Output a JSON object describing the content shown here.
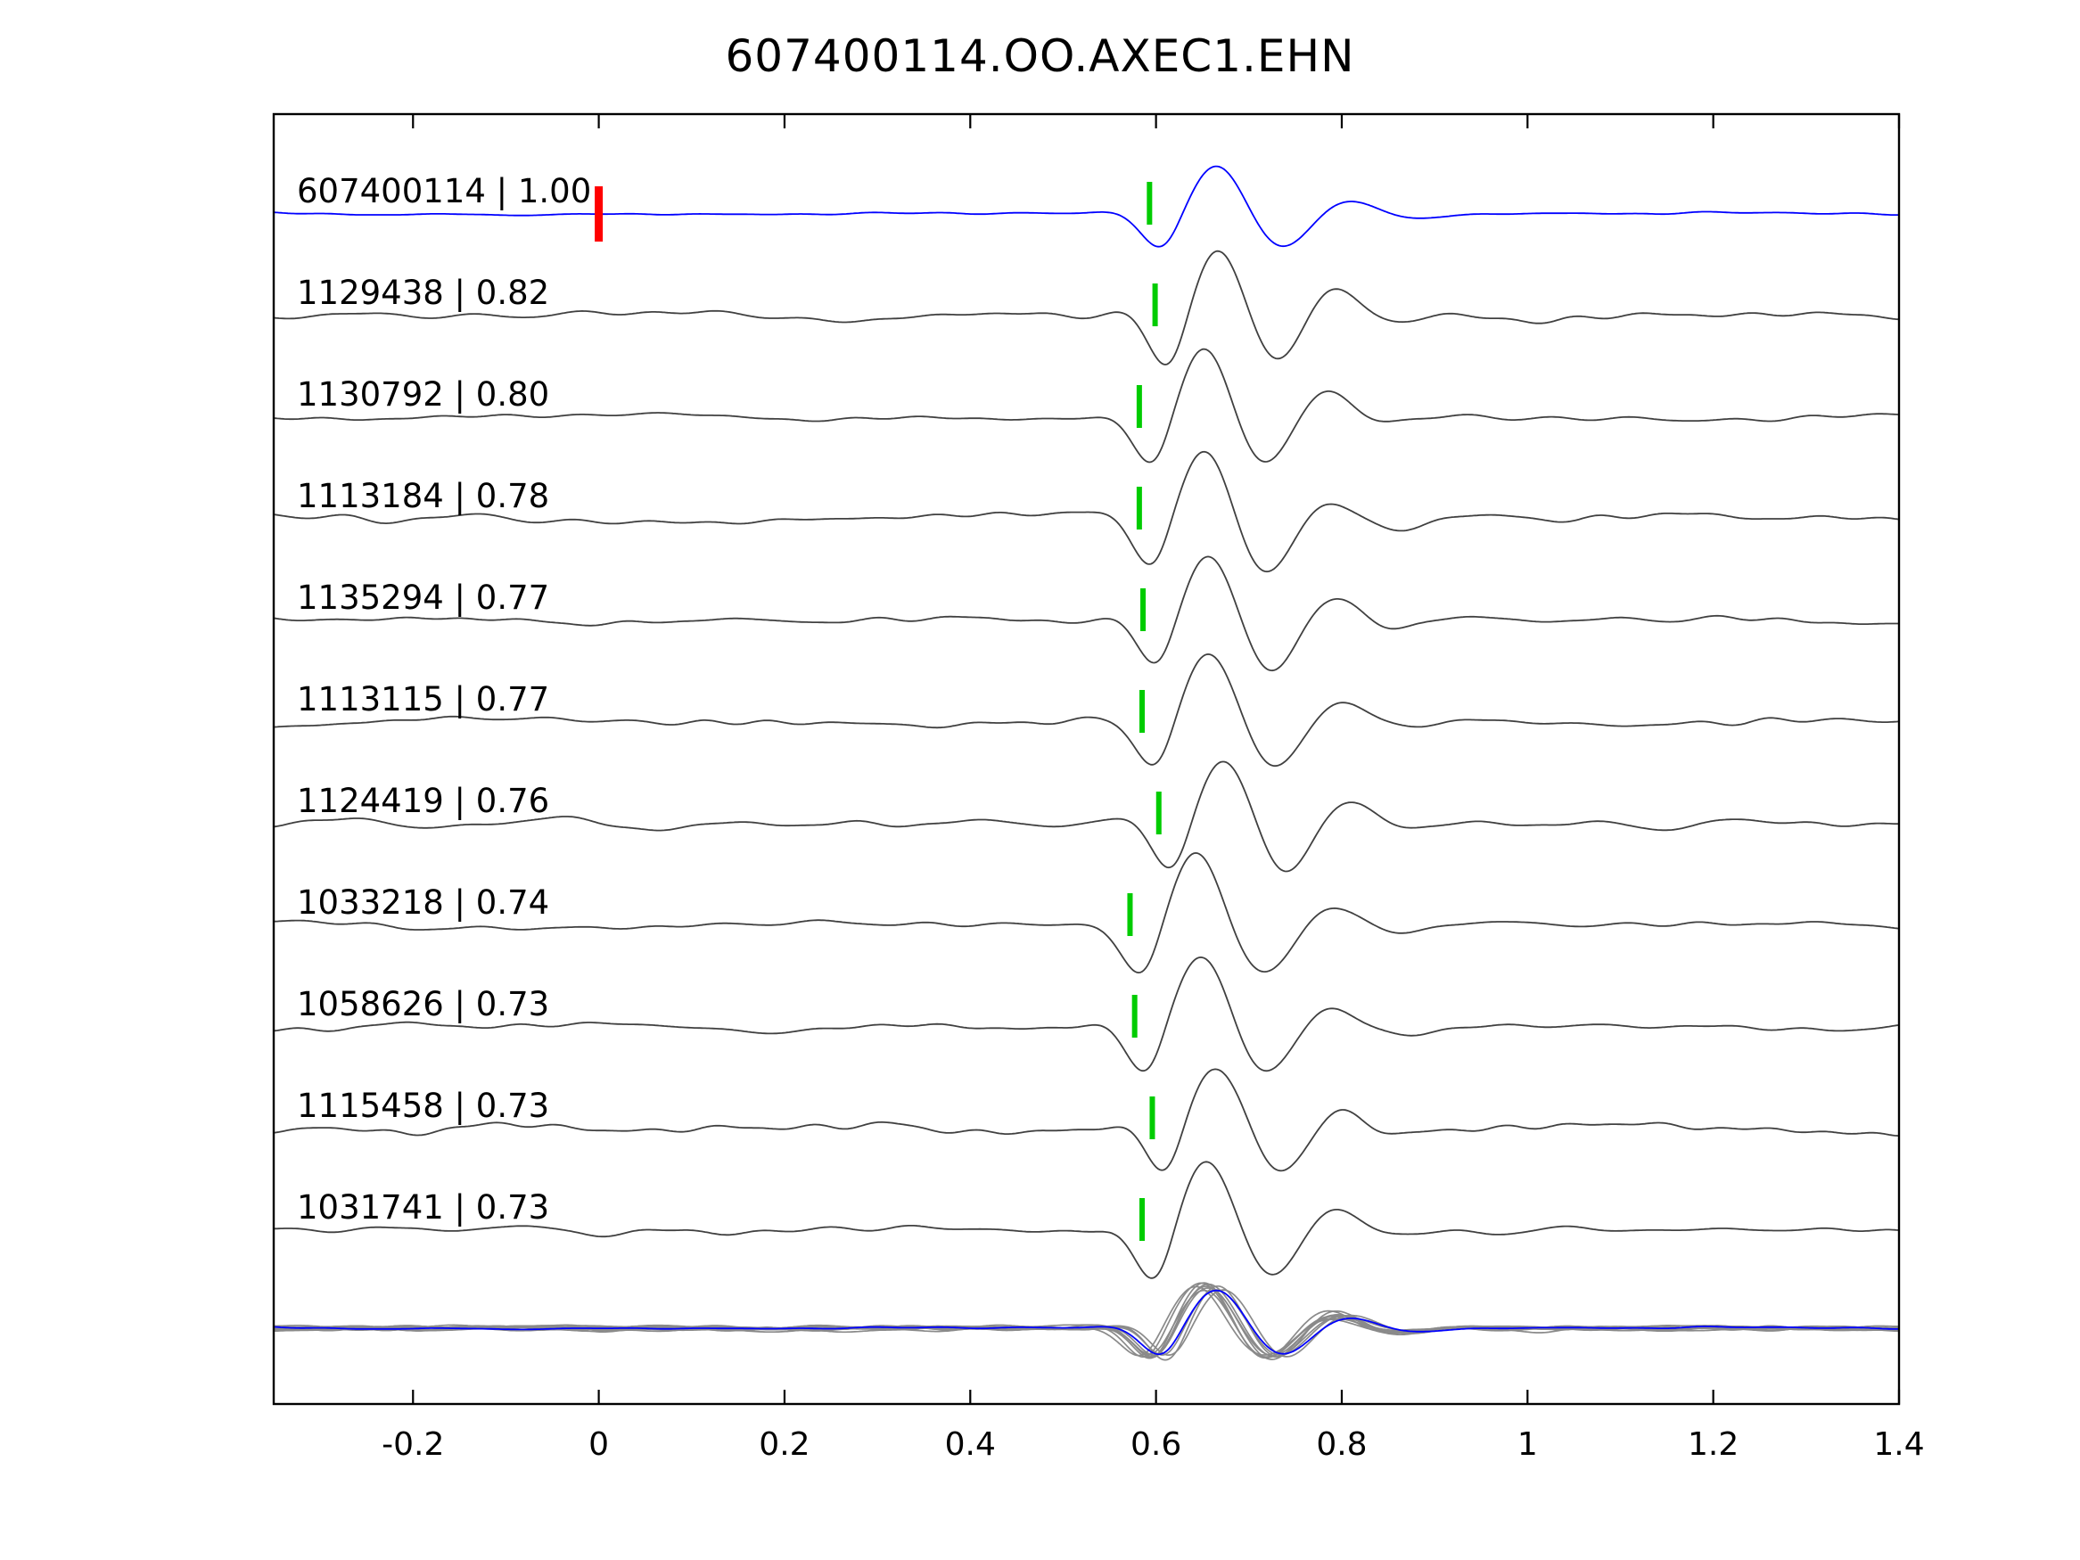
{
  "title": "607400114.OO.AXEC1.EHN",
  "chart_data": {
    "type": "line",
    "title": "607400114.OO.AXEC1.EHN",
    "xlabel": "",
    "ylabel": "",
    "xlim": [
      -0.35,
      1.4
    ],
    "grid": false,
    "legend": "none",
    "x_ticks": [
      -0.2,
      0,
      0.2,
      0.4,
      0.6,
      0.8,
      1,
      1.2,
      1.4
    ],
    "x_tick_labels": [
      "-0.2",
      "0",
      "0.2",
      "0.4",
      "0.6",
      "0.8",
      "1",
      "1.2",
      "1.4"
    ],
    "colors": {
      "reference_trace": "#0000ff",
      "match_trace": "#404040",
      "overlay_gray": "#8a8a8a",
      "pick_marker": "#00cc00",
      "reference_marker": "#ff0000",
      "axis": "#000000",
      "background": "#ffffff"
    },
    "traces": [
      {
        "id": "607400114",
        "correlation": 1.0,
        "label": "607400114 | 1.00",
        "role": "reference",
        "pick_time": 0.593,
        "reference_marker_time": 0.0
      },
      {
        "id": "1129438",
        "correlation": 0.82,
        "label": "1129438 | 0.82",
        "role": "match",
        "pick_time": 0.599
      },
      {
        "id": "1130792",
        "correlation": 0.8,
        "label": "1130792 | 0.80",
        "role": "match",
        "pick_time": 0.582
      },
      {
        "id": "1113184",
        "correlation": 0.78,
        "label": "1113184 | 0.78",
        "role": "match",
        "pick_time": 0.582
      },
      {
        "id": "1135294",
        "correlation": 0.77,
        "label": "1135294 | 0.77",
        "role": "match",
        "pick_time": 0.586
      },
      {
        "id": "1113115",
        "correlation": 0.77,
        "label": "1113115 | 0.77",
        "role": "match",
        "pick_time": 0.585
      },
      {
        "id": "1124419",
        "correlation": 0.76,
        "label": "1124419 | 0.76",
        "role": "match",
        "pick_time": 0.603
      },
      {
        "id": "1033218",
        "correlation": 0.74,
        "label": "1033218 | 0.74",
        "role": "match",
        "pick_time": 0.572
      },
      {
        "id": "1058626",
        "correlation": 0.73,
        "label": "1058626 | 0.73",
        "role": "match",
        "pick_time": 0.577
      },
      {
        "id": "1115458",
        "correlation": 0.73,
        "label": "1115458 | 0.73",
        "role": "match",
        "pick_time": 0.596
      },
      {
        "id": "1031741",
        "correlation": 0.73,
        "label": "1031741 | 0.73",
        "role": "match",
        "pick_time": 0.585
      }
    ],
    "overlay_row": {
      "description": "all matched traces superimposed in gray with the reference trace in blue",
      "trace_count": 11
    }
  }
}
